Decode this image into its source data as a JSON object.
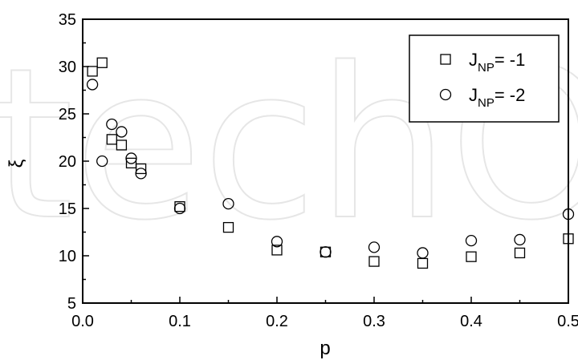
{
  "chart_data": {
    "type": "scatter",
    "xlabel": "p",
    "ylabel": "ξ",
    "xlim": [
      0.0,
      0.5
    ],
    "ylim": [
      5,
      35
    ],
    "xticks": [
      "0.0",
      "0.1",
      "0.2",
      "0.3",
      "0.4",
      "0.5"
    ],
    "yticks": [
      "5",
      "10",
      "15",
      "20",
      "25",
      "30",
      "35"
    ],
    "grid": false,
    "legend_position": "top-right",
    "series": [
      {
        "name_main": "J",
        "name_sub": "NP",
        "name_rest": "= -1",
        "marker": "square",
        "x": [
          0.01,
          0.02,
          0.03,
          0.04,
          0.05,
          0.06,
          0.1,
          0.15,
          0.2,
          0.25,
          0.3,
          0.35,
          0.4,
          0.45,
          0.5
        ],
        "y": [
          29.5,
          30.4,
          22.3,
          21.7,
          19.8,
          19.2,
          15.2,
          13.0,
          10.6,
          10.4,
          9.4,
          9.2,
          9.9,
          10.3,
          11.8
        ]
      },
      {
        "name_main": "J",
        "name_sub": "NP",
        "name_rest": "= -2",
        "marker": "circle",
        "x": [
          0.01,
          0.02,
          0.03,
          0.04,
          0.05,
          0.06,
          0.1,
          0.15,
          0.2,
          0.25,
          0.3,
          0.35,
          0.4,
          0.45,
          0.5
        ],
        "y": [
          28.1,
          20.0,
          23.9,
          23.1,
          20.3,
          18.7,
          15.0,
          15.5,
          11.5,
          10.4,
          10.9,
          10.3,
          11.6,
          11.7,
          14.4
        ]
      }
    ]
  },
  "watermark": "techOpen"
}
